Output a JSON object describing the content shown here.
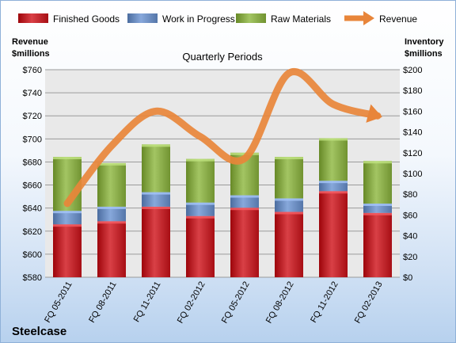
{
  "chart_data": {
    "type": "bar",
    "title": "Quarterly Periods",
    "company": "Steelcase",
    "left_axis_label_line1": "Revenue",
    "left_axis_label_line2": "$millions",
    "right_axis_label_line1": "Inventory",
    "right_axis_label_line2": "$millions",
    "categories": [
      "FQ 05-2011",
      "FQ 08-2011",
      "FQ 11-2011",
      "FQ 02-2012",
      "FQ 05-2012",
      "FQ 08-2012",
      "FQ 11-2012",
      "FQ 02-2013"
    ],
    "stacked_series": [
      {
        "name": "Finished Goods",
        "color": "#c0272d",
        "values": [
          51,
          54,
          68,
          59,
          67,
          63,
          83,
          62
        ]
      },
      {
        "name": "Work in Progress",
        "color": "#6e8fc2",
        "values": [
          13,
          14,
          14,
          13,
          12,
          13,
          10,
          9
        ]
      },
      {
        "name": "Raw Materials",
        "color": "#8aac4a",
        "values": [
          52,
          42,
          46,
          42,
          41,
          40,
          41,
          41
        ]
      }
    ],
    "line_series": {
      "name": "Revenue",
      "color": "#e8853a",
      "values": [
        644,
        694,
        724,
        702,
        683,
        757,
        730,
        720
      ]
    },
    "left_axis": {
      "min": 580,
      "max": 760,
      "step": 20,
      "prefix": "$"
    },
    "right_axis": {
      "min": 0,
      "max": 200,
      "step": 20,
      "prefix": "$"
    },
    "gridlines": true,
    "legend_position": "top"
  }
}
